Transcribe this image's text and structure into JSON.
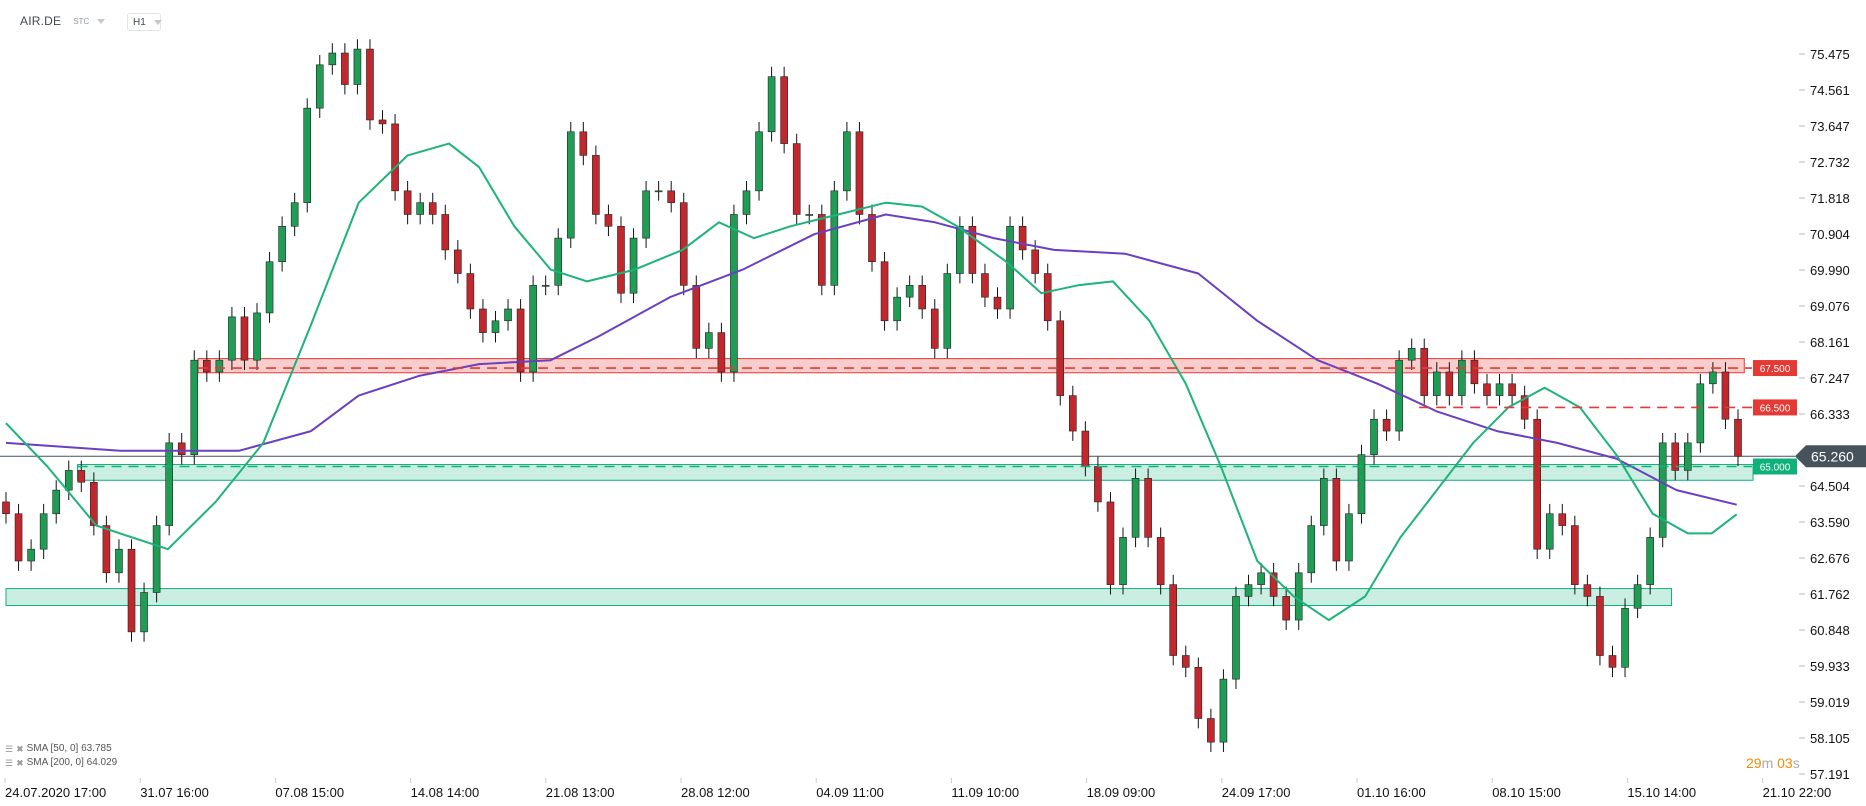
{
  "header": {
    "symbol": "AIR.DE",
    "market": "STC",
    "timeframe": "H1"
  },
  "legend": [
    {
      "label": "SMA [50, 0] 63.785",
      "color": "#1db37a"
    },
    {
      "label": "SMA [200, 0] 64.029",
      "color": "#6a3fc2"
    }
  ],
  "timer": {
    "minutes": "29",
    "m": "m",
    "seconds": "03",
    "s": "s"
  },
  "colors": {
    "bull": "#1f9d55",
    "bear": "#c0282d",
    "sma50": "#1db37a",
    "sma200": "#6a3fc2",
    "resistance": "#e53935",
    "support": "#10b07a",
    "current": "#46525c",
    "timer": "#f08c00"
  },
  "chart_data": {
    "type": "candlestick",
    "ylim": [
      57.191,
      75.475
    ],
    "y_ticks": [
      "75.475",
      "74.561",
      "73.647",
      "72.732",
      "71.818",
      "70.904",
      "69.990",
      "69.076",
      "68.161",
      "67.247",
      "66.333",
      "65.418",
      "64.504",
      "63.590",
      "62.676",
      "61.762",
      "60.848",
      "59.933",
      "59.019",
      "58.105",
      "57.191"
    ],
    "x_ticks": [
      "24.07.2020  17:00",
      "31.07  16:00",
      "07.08  15:00",
      "14.08  14:00",
      "21.08  13:00",
      "28.08  12:00",
      "04.09  11:00",
      "11.09  10:00",
      "18.09  09:00",
      "24.09  17:00",
      "01.10  16:00",
      "08.10  15:00",
      "15.10  14:00",
      "21.10  22:00"
    ],
    "close": [
      63.8,
      62.6,
      62.9,
      63.8,
      64.4,
      64.9,
      64.6,
      63.5,
      62.3,
      62.9,
      60.8,
      61.8,
      63.5,
      65.6,
      65.3,
      67.7,
      67.4,
      67.7,
      68.8,
      67.7,
      68.9,
      70.2,
      71.1,
      71.7,
      74.1,
      75.2,
      75.5,
      74.7,
      75.6,
      73.8,
      73.7,
      72.0,
      71.4,
      71.7,
      71.4,
      70.5,
      69.9,
      69.0,
      68.4,
      68.7,
      69.0,
      67.4,
      69.6,
      69.6,
      70.8,
      73.5,
      72.9,
      71.4,
      71.1,
      69.4,
      70.8,
      72.0,
      72.0,
      71.7,
      69.6,
      68.0,
      68.4,
      67.4,
      71.4,
      72.0,
      73.5,
      74.9,
      73.2,
      71.4,
      71.4,
      69.6,
      72.0,
      73.5,
      71.4,
      70.2,
      68.7,
      69.3,
      69.6,
      69.0,
      68.0,
      69.9,
      71.1,
      69.9,
      69.3,
      69.0,
      71.1,
      70.5,
      69.9,
      68.7,
      66.8,
      65.9,
      65.0,
      64.1,
      62.0,
      63.2,
      64.7,
      63.2,
      62.0,
      60.2,
      59.9,
      58.6,
      58.0,
      59.6,
      61.7,
      62.0,
      62.3,
      61.7,
      61.1,
      62.3,
      63.5,
      64.7,
      62.6,
      63.8,
      65.3,
      66.2,
      65.9,
      67.7,
      68.0,
      66.8,
      67.4,
      66.8,
      67.7,
      67.1,
      66.8,
      67.1,
      66.8,
      66.2,
      62.9,
      63.8,
      63.5,
      62.0,
      61.7,
      60.2,
      59.9,
      61.4,
      62.0,
      63.2,
      65.6,
      64.9,
      65.6,
      67.1,
      67.4,
      66.2,
      65.26
    ],
    "sma50": [
      [
        0,
        66.1
      ],
      [
        3.3,
        65.0
      ],
      [
        7.2,
        63.5
      ],
      [
        12.9,
        62.9
      ],
      [
        16.7,
        64.1
      ],
      [
        20.5,
        65.6
      ],
      [
        24.3,
        68.6
      ],
      [
        28.1,
        71.7
      ],
      [
        32,
        72.9
      ],
      [
        35.3,
        73.2
      ],
      [
        37.7,
        72.6
      ],
      [
        40.5,
        71.1
      ],
      [
        43.4,
        70.0
      ],
      [
        46.3,
        69.7
      ],
      [
        50.1,
        70.0
      ],
      [
        53.9,
        70.5
      ],
      [
        56.8,
        71.2
      ],
      [
        59.6,
        70.8
      ],
      [
        62.5,
        71.1
      ],
      [
        66.3,
        71.4
      ],
      [
        70.1,
        71.7
      ],
      [
        73,
        71.6
      ],
      [
        75.8,
        71.1
      ],
      [
        79.7,
        70.2
      ],
      [
        82.5,
        69.4
      ],
      [
        85.4,
        69.6
      ],
      [
        88.2,
        69.7
      ],
      [
        91.1,
        68.7
      ],
      [
        94,
        67.1
      ],
      [
        96.8,
        65.0
      ],
      [
        99.7,
        62.6
      ],
      [
        102.6,
        61.7
      ],
      [
        105.4,
        61.1
      ],
      [
        108.3,
        61.7
      ],
      [
        111.1,
        63.2
      ],
      [
        114,
        64.4
      ],
      [
        116.9,
        65.6
      ],
      [
        119.7,
        66.5
      ],
      [
        122.6,
        67.0
      ],
      [
        125.4,
        66.5
      ],
      [
        128.3,
        65.3
      ],
      [
        131.2,
        63.8
      ],
      [
        134,
        63.3
      ],
      [
        135.9,
        63.3
      ],
      [
        137.9,
        63.785
      ]
    ],
    "sma200": [
      [
        0,
        65.6
      ],
      [
        9.1,
        65.4
      ],
      [
        18.6,
        65.4
      ],
      [
        24.3,
        65.9
      ],
      [
        28.1,
        66.8
      ],
      [
        32.9,
        67.3
      ],
      [
        37.7,
        67.6
      ],
      [
        43.4,
        67.7
      ],
      [
        47.2,
        68.3
      ],
      [
        52.9,
        69.3
      ],
      [
        58.7,
        70.0
      ],
      [
        64.4,
        70.9
      ],
      [
        70.1,
        71.4
      ],
      [
        74,
        71.2
      ],
      [
        78.7,
        70.8
      ],
      [
        83.5,
        70.5
      ],
      [
        89.2,
        70.4
      ],
      [
        95,
        69.9
      ],
      [
        99.7,
        68.7
      ],
      [
        104.5,
        67.7
      ],
      [
        109.3,
        67.1
      ],
      [
        114,
        66.4
      ],
      [
        118.8,
        65.9
      ],
      [
        123.6,
        65.6
      ],
      [
        128.3,
        65.2
      ],
      [
        133.1,
        64.4
      ],
      [
        137.9,
        64.029
      ]
    ],
    "zones": [
      {
        "kind": "resistance",
        "low": 67.38,
        "high": 67.74,
        "from_bar": 15.3,
        "to_bar": 138.5
      },
      {
        "kind": "support",
        "low": 64.65,
        "high": 65.05,
        "from_bar": 5.7,
        "to_bar": 139.2
      },
      {
        "kind": "support",
        "low": 61.47,
        "high": 61.9,
        "from_bar": 0,
        "to_bar": 132.7
      }
    ],
    "levels": [
      {
        "label": "67.500",
        "value": 67.5,
        "kind": "resistance",
        "from_bar": 15.3
      },
      {
        "label": "66.500",
        "value": 66.5,
        "kind": "resistance",
        "from_bar": 112.6
      },
      {
        "label": "65.000",
        "value": 65.0,
        "kind": "support",
        "from_bar": 5.7
      }
    ],
    "current_price": {
      "label": "65.260",
      "value": 65.26
    }
  }
}
